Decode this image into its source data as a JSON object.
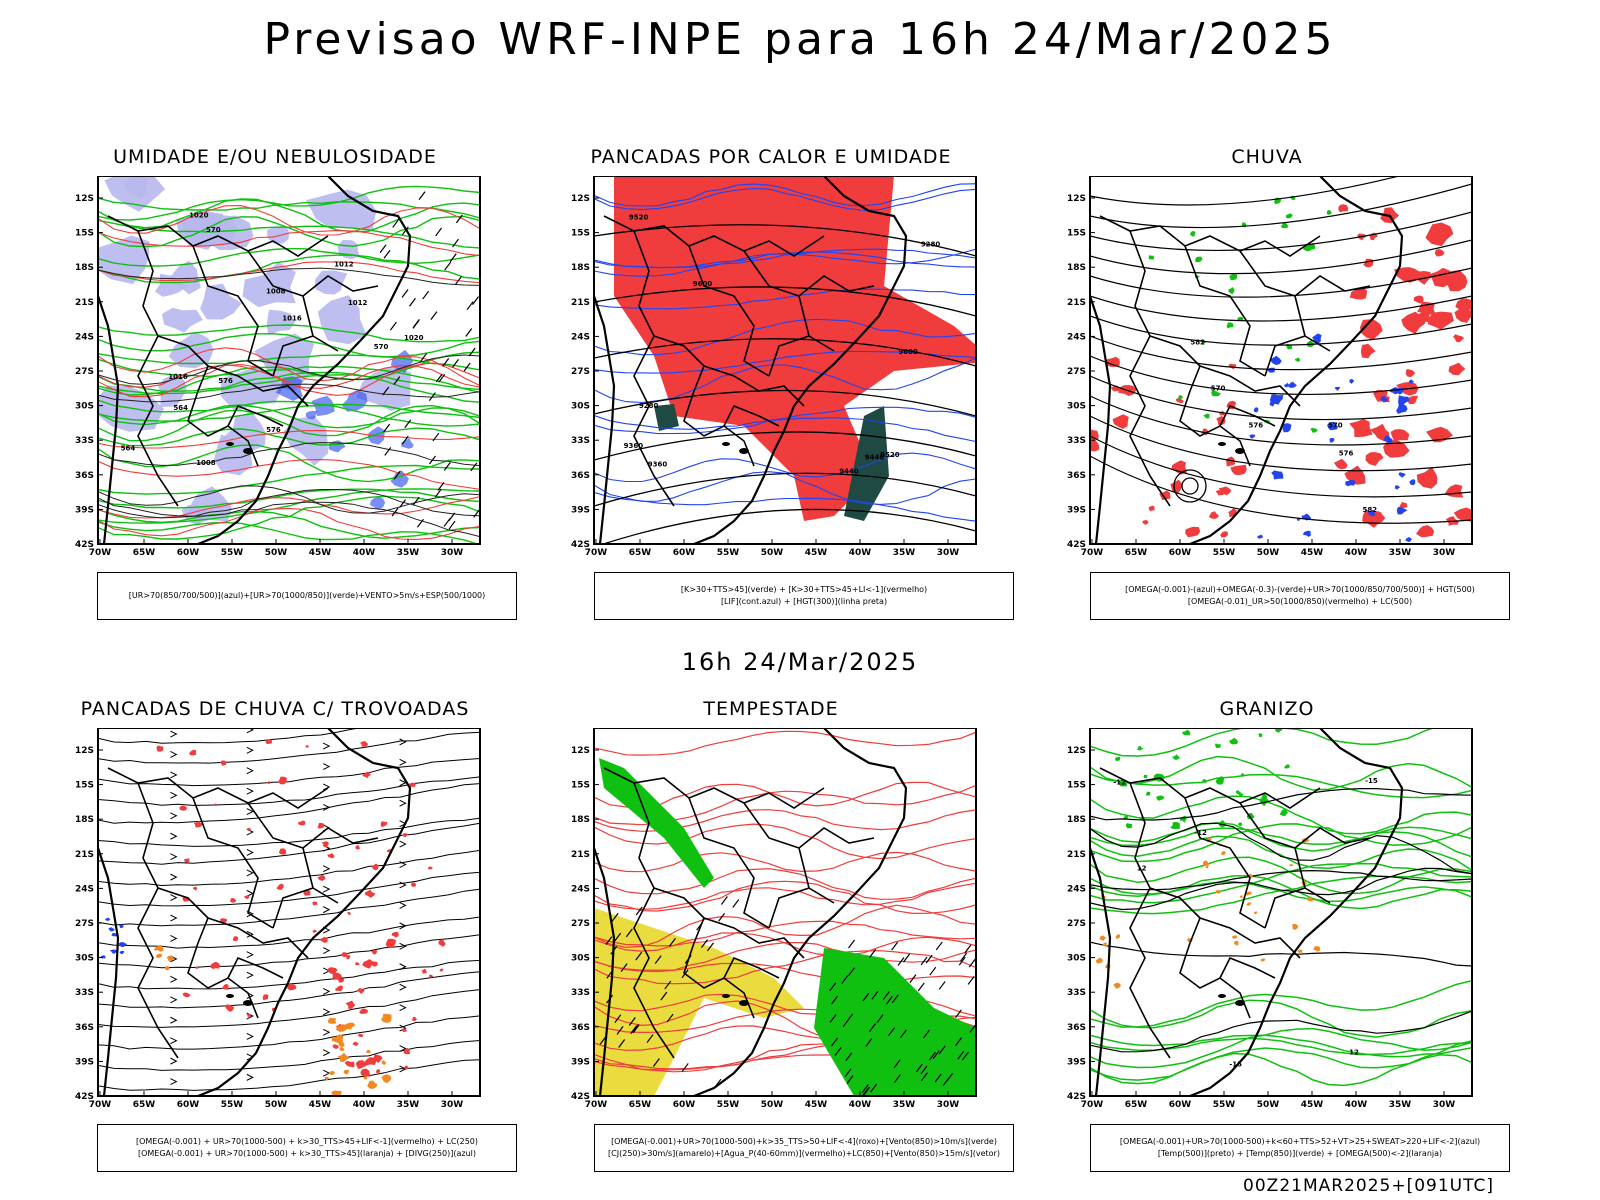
{
  "title": "Previsao WRF-INPE  para 16h 24/Mar/2025",
  "subtitle": "16h 24/Mar/2025",
  "footer": "00Z21MAR2025+[091UTC]",
  "axes": {
    "lat_labels": [
      "12S",
      "15S",
      "18S",
      "21S",
      "24S",
      "27S",
      "30S",
      "33S",
      "36S",
      "39S",
      "42S"
    ],
    "lon_labels": [
      "70W",
      "65W",
      "60W",
      "55W",
      "50W",
      "45W",
      "40W",
      "35W",
      "30W"
    ]
  },
  "colors": {
    "red": "#f03c3c",
    "green": "#10c010",
    "blue": "#2244ee",
    "lavender": "#b7b7ee",
    "orange": "#f08a20",
    "yellow": "#e8d82a",
    "darkteal": "#1f4a44"
  },
  "panels": [
    {
      "title": "UMIDADE E/OU NEBULOSIDADE",
      "legend": [
        "[UR>70(850/700/500)](azul)+[UR>70(1000/850)](verde)+VENTO>5m/s+ESP(500/1000)"
      ],
      "labels": [
        "1008",
        "1012",
        "1016",
        "1020",
        "576",
        "570",
        "564"
      ]
    },
    {
      "title": "PANCADAS POR CALOR E UMIDADE",
      "legend": [
        "[K>30+TTS>45](verde) + [K>30+TTS>45+LI<-1](vermelho)",
        "[LIF](cont.azul) + [HGT(300)](linha preta)"
      ],
      "labels": [
        "9600",
        "9520",
        "9440",
        "9360",
        "9280"
      ]
    },
    {
      "title": "CHUVA",
      "legend": [
        "[OMEGA(-0.001)-(azul)+OMEGA(-0.3)-(verde)+UR>70(1000/850/700/500)] + HGT(500)",
        "[OMEGA(-0.01)_UR>50(1000/850)(vermelho) + LC(500)"
      ],
      "labels": [
        "582",
        "576",
        "570"
      ]
    },
    {
      "title": "PANCADAS DE CHUVA C/ TROVOADAS",
      "legend": [
        "[OMEGA(-0.001) + UR>70(1000-500) + k>30_TTS>45+LIF<-1](vermelho) + LC(250)",
        "[OMEGA(-0.001) + UR>70(1000-500) + k>30_TTS>45](laranja) + [DIVG(250)](azul)"
      ],
      "labels": []
    },
    {
      "title": "TEMPESTADE",
      "legend": [
        "[OMEGA(-0.001)+UR>70(1000-500)+k>35_TTS>50+LIF<-4](roxo)+[Vento(850)>10m/s](verde)",
        "[CJ(250)>30m/s](amarelo)+[Agua_P(40-60mm)](vermelho)+LC(850)+[Vento(850)>15m/s](vetor)"
      ],
      "labels": []
    },
    {
      "title": "GRANIZO",
      "legend": [
        "[OMEGA(-0.001)+UR>70(1000-500)+k<60+TTS>52+VT>25+SWEAT>220+LIF<-2](azul)",
        "[Temp(500)](preto) + [Temp(850)](verde) + [OMEGA(500)<-2](laranja)"
      ],
      "labels": [
        "-12",
        "-15",
        "12"
      ]
    }
  ]
}
